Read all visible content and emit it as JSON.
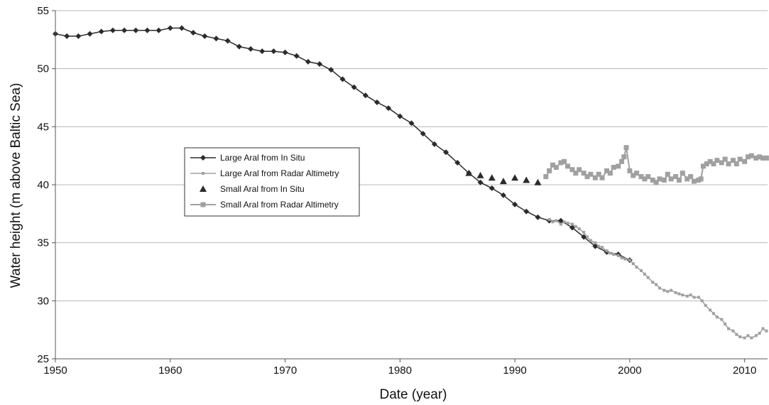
{
  "chart_data": {
    "type": "line",
    "title": "",
    "xlabel": "Date (year)",
    "ylabel": "Water height (m above Baltic Sea)",
    "xlim": [
      1950,
      2012
    ],
    "ylim": [
      25,
      55
    ],
    "xticks": [
      1950,
      1960,
      1970,
      1980,
      1990,
      2000,
      2010
    ],
    "yticks": [
      25,
      30,
      35,
      40,
      45,
      50,
      55
    ],
    "grid": "horizontal",
    "legend_position": "center-left",
    "series": [
      {
        "name": "Large Aral from In Situ",
        "color": "#2b2b2b",
        "marker": "diamond",
        "x": [
          1950,
          1951,
          1952,
          1953,
          1954,
          1955,
          1956,
          1957,
          1958,
          1959,
          1960,
          1961,
          1962,
          1963,
          1964,
          1965,
          1966,
          1967,
          1968,
          1969,
          1970,
          1971,
          1972,
          1973,
          1974,
          1975,
          1976,
          1977,
          1978,
          1979,
          1980,
          1981,
          1982,
          1983,
          1984,
          1985,
          1986,
          1987,
          1988,
          1989,
          1990,
          1991,
          1992,
          1993,
          1994,
          1995,
          1996,
          1997,
          1998,
          1999,
          2000
        ],
        "y": [
          53.0,
          52.8,
          52.8,
          53.0,
          53.2,
          53.3,
          53.3,
          53.3,
          53.3,
          53.3,
          53.5,
          53.5,
          53.1,
          52.8,
          52.6,
          52.4,
          51.9,
          51.7,
          51.5,
          51.5,
          51.4,
          51.1,
          50.6,
          50.4,
          49.9,
          49.1,
          48.4,
          47.7,
          47.1,
          46.6,
          45.9,
          45.3,
          44.4,
          43.5,
          42.8,
          41.9,
          41.0,
          40.2,
          39.7,
          39.1,
          38.3,
          37.7,
          37.2,
          36.9,
          36.9,
          36.3,
          35.5,
          34.7,
          34.2,
          34.0,
          33.5
        ]
      },
      {
        "name": "Large Aral from Radar Altimetry",
        "color": "#a0a0a0",
        "marker": "small-square",
        "x": [
          1993.0,
          1993.3,
          1993.6,
          1994.0,
          1994.3,
          1994.6,
          1995.0,
          1995.3,
          1995.6,
          1996.0,
          1996.3,
          1996.6,
          1997.0,
          1997.3,
          1997.6,
          1998.0,
          1998.3,
          1998.6,
          1999.0,
          1999.3,
          1999.6,
          2000.0,
          2000.3,
          2000.6,
          2001.0,
          2001.3,
          2001.6,
          2002.0,
          2002.3,
          2002.6,
          2003.0,
          2003.3,
          2003.6,
          2004.0,
          2004.3,
          2004.6,
          2005.0,
          2005.3,
          2005.6,
          2006.0,
          2006.3,
          2006.6,
          2007.0,
          2007.3,
          2007.6,
          2008.0,
          2008.3,
          2008.6,
          2009.0,
          2009.3,
          2009.6,
          2010.0,
          2010.3,
          2010.6,
          2011.0,
          2011.3,
          2011.6,
          2011.9
        ],
        "y": [
          37.0,
          36.8,
          36.9,
          36.6,
          36.8,
          36.7,
          36.6,
          36.4,
          36.2,
          35.9,
          35.5,
          35.2,
          35.0,
          34.7,
          34.6,
          34.3,
          34.1,
          34.0,
          33.9,
          33.7,
          33.6,
          33.5,
          33.2,
          32.9,
          32.6,
          32.3,
          32.0,
          31.6,
          31.4,
          31.1,
          30.9,
          30.8,
          30.9,
          30.7,
          30.6,
          30.5,
          30.4,
          30.5,
          30.3,
          30.3,
          30.0,
          29.6,
          29.2,
          28.9,
          28.6,
          28.4,
          28.0,
          27.6,
          27.4,
          27.1,
          26.9,
          26.8,
          27.0,
          26.8,
          27.0,
          27.2,
          27.6,
          27.4
        ]
      },
      {
        "name": "Small Aral from In Situ",
        "color": "#2b2b2b",
        "marker": "triangle",
        "x": [
          1986,
          1987,
          1988,
          1989,
          1990,
          1991,
          1992
        ],
        "y": [
          41.0,
          40.8,
          40.6,
          40.3,
          40.6,
          40.4,
          40.2
        ]
      },
      {
        "name": "Small Aral from Radar Altimetry",
        "color": "#a0a0a0",
        "marker": "square",
        "x": [
          1992.7,
          1993.0,
          1993.3,
          1993.6,
          1994.0,
          1994.3,
          1994.6,
          1995.0,
          1995.3,
          1995.6,
          1996.0,
          1996.3,
          1996.6,
          1997.0,
          1997.3,
          1997.6,
          1998.0,
          1998.3,
          1998.6,
          1999.0,
          1999.3,
          1999.5,
          1999.7,
          2000.0,
          2000.3,
          2000.6,
          2001.0,
          2001.3,
          2001.6,
          2002.0,
          2002.3,
          2002.6,
          2003.0,
          2003.3,
          2003.6,
          2004.0,
          2004.3,
          2004.6,
          2005.0,
          2005.3,
          2005.6,
          2006.0,
          2006.2,
          2006.4,
          2006.7,
          2007.0,
          2007.3,
          2007.6,
          2008.0,
          2008.3,
          2008.6,
          2009.0,
          2009.3,
          2009.6,
          2010.0,
          2010.3,
          2010.6,
          2011.0,
          2011.3,
          2011.6,
          2011.9
        ],
        "y": [
          40.7,
          41.2,
          41.7,
          41.5,
          41.9,
          42.0,
          41.6,
          41.3,
          41.0,
          41.3,
          41.0,
          40.7,
          40.9,
          40.6,
          40.9,
          40.6,
          41.2,
          41.0,
          41.5,
          41.6,
          42.0,
          42.4,
          43.2,
          41.2,
          40.8,
          41.0,
          40.7,
          40.5,
          40.7,
          40.4,
          40.2,
          40.5,
          40.4,
          40.9,
          40.5,
          40.7,
          40.4,
          41.0,
          40.5,
          40.7,
          40.3,
          40.4,
          40.5,
          41.6,
          41.8,
          42.0,
          41.8,
          42.1,
          41.9,
          42.2,
          41.8,
          42.1,
          41.8,
          42.2,
          42.0,
          42.4,
          42.5,
          42.3,
          42.4,
          42.3,
          42.3
        ]
      }
    ]
  }
}
